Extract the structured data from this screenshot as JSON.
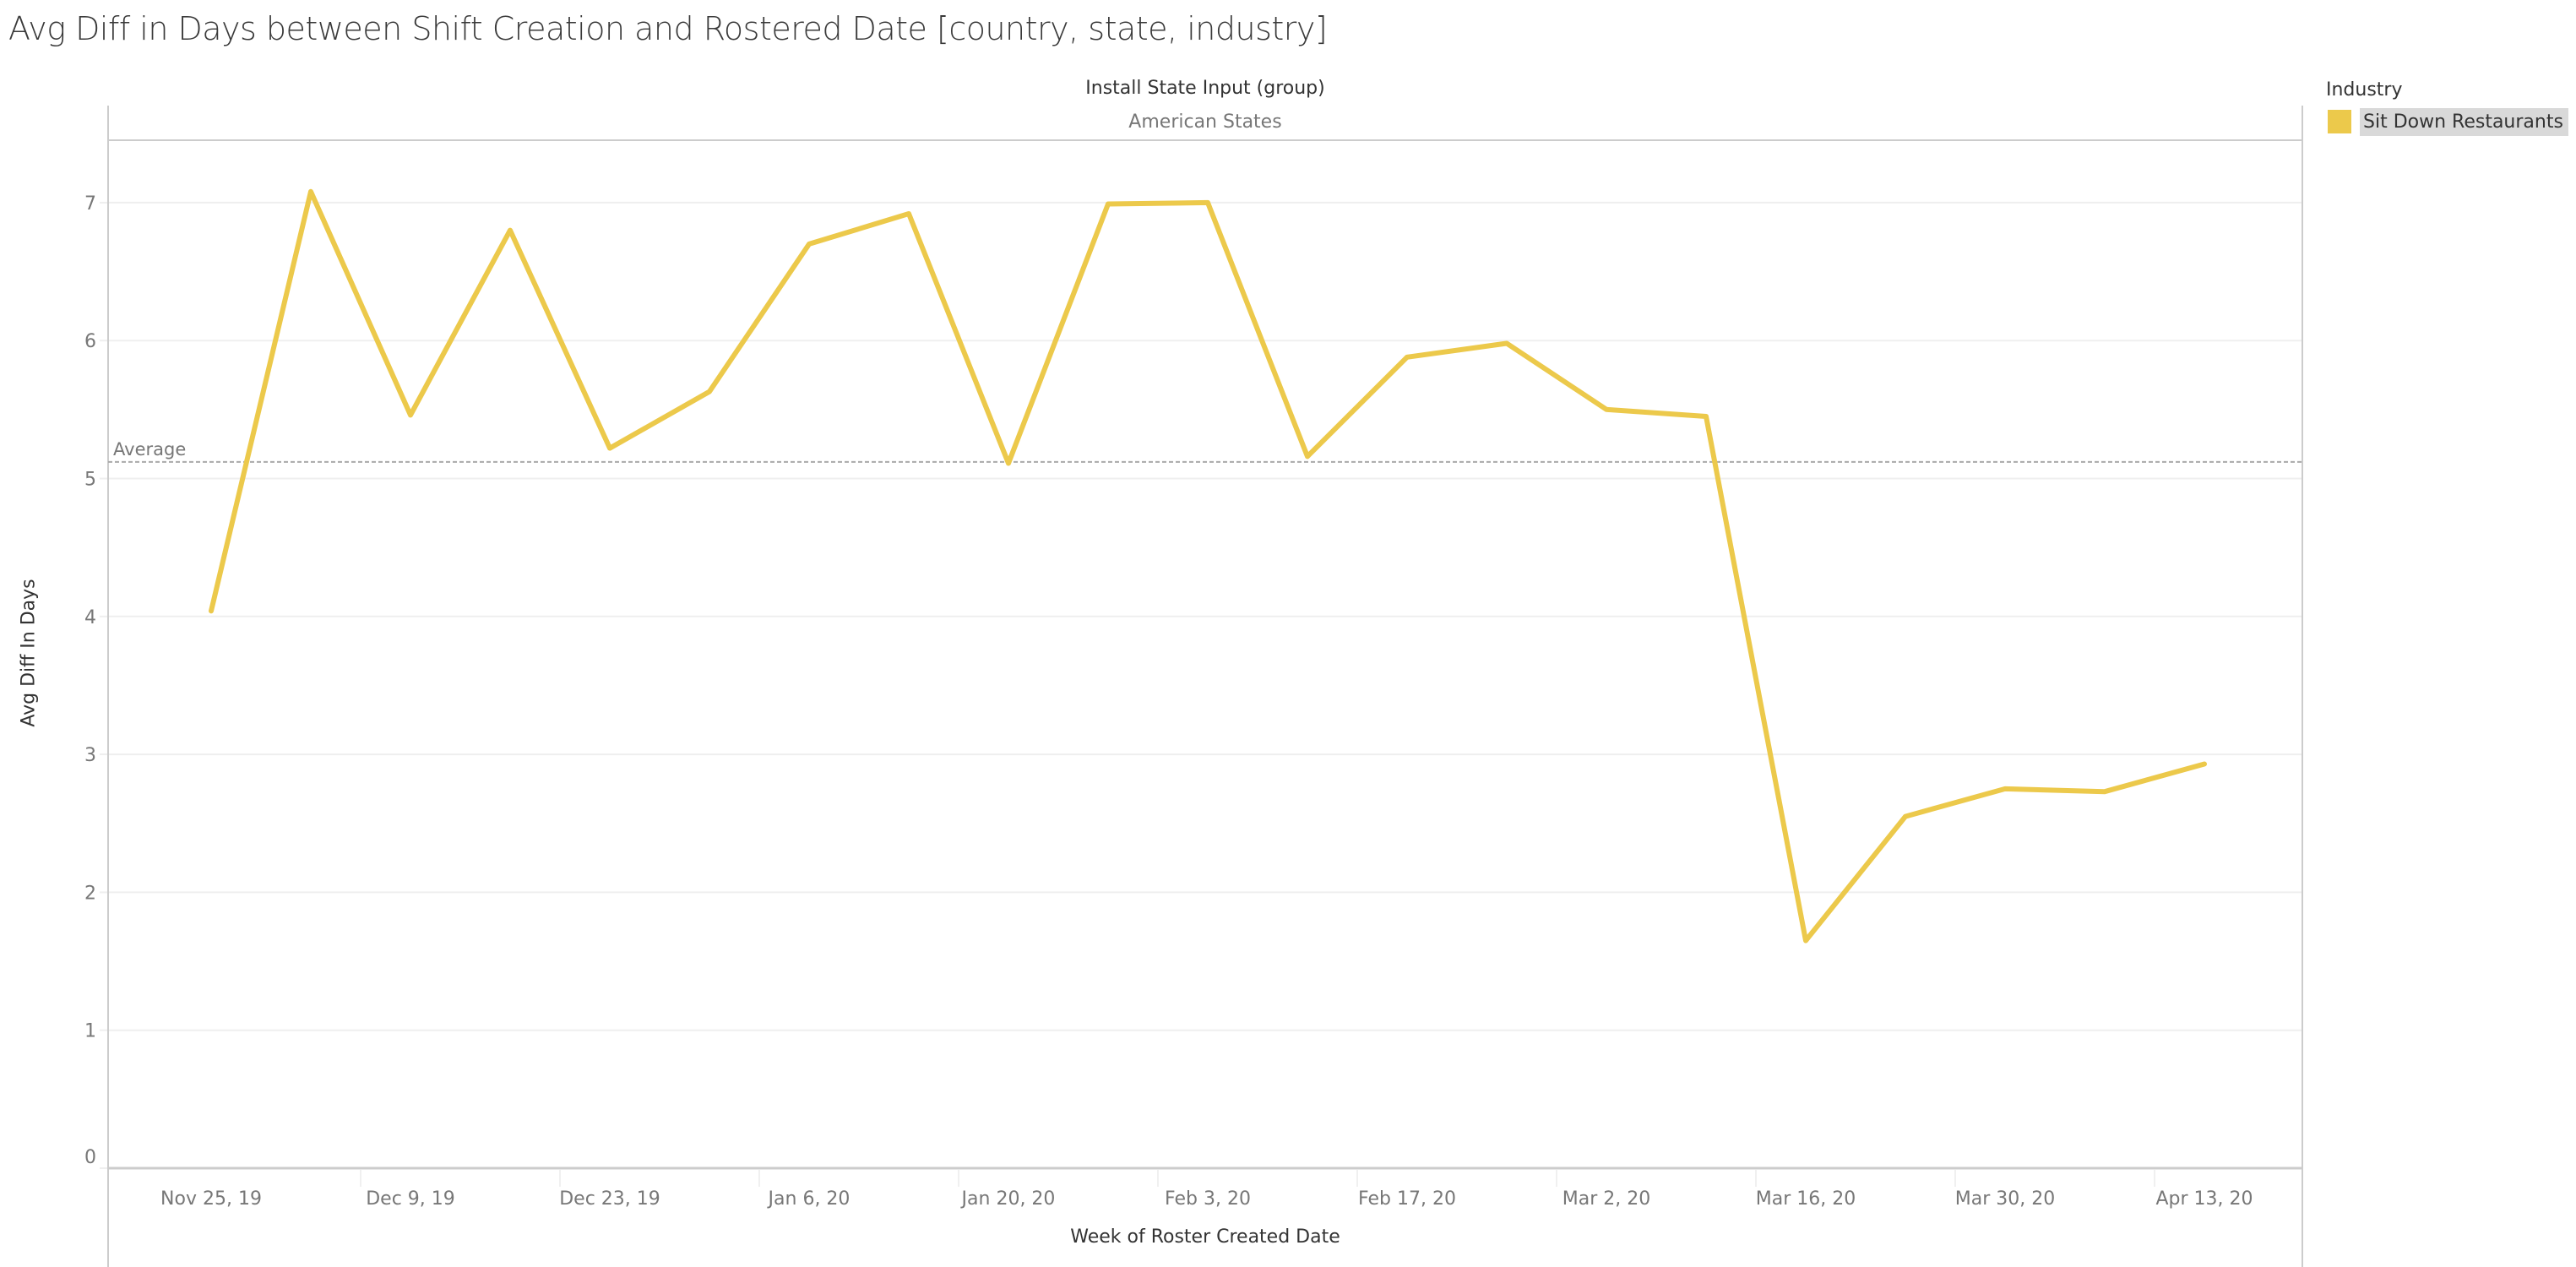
{
  "title": "Avg Diff in Days between Shift Creation and Rostered Date [country, state, industry]",
  "pane": {
    "header": "Install State Input (group)",
    "subheader": "American States"
  },
  "legend": {
    "title": "Industry",
    "items": [
      {
        "label": "Sit Down Restaurants",
        "color": "#ECC94B"
      }
    ]
  },
  "reference_line": {
    "label": "Average",
    "value": 5.12
  },
  "chart_data": {
    "type": "line",
    "title": "Avg Diff in Days between Shift Creation and Rostered Date [country, state, industry]",
    "xlabel": "Week of Roster Created Date",
    "ylabel": "Avg Diff In Days",
    "ylim": [
      0,
      7.5
    ],
    "yticks": [
      0,
      1,
      2,
      3,
      4,
      5,
      6,
      7
    ],
    "grid": true,
    "legend_position": "right",
    "column_header": "Install State Input (group)",
    "column_value": "American States",
    "x_tick_labels": [
      "Nov 25, 19",
      "Dec 9, 19",
      "Dec 23, 19",
      "Jan 6, 20",
      "Jan 20, 20",
      "Feb 3, 20",
      "Feb 17, 20",
      "Mar 2, 20",
      "Mar 16, 20",
      "Mar 30, 20",
      "Apr 13, 20"
    ],
    "x": [
      "Nov 25, 19",
      "Dec 2, 19",
      "Dec 9, 19",
      "Dec 16, 19",
      "Dec 23, 19",
      "Dec 30, 19",
      "Jan 6, 20",
      "Jan 13, 20",
      "Jan 20, 20",
      "Jan 27, 20",
      "Feb 3, 20",
      "Feb 10, 20",
      "Feb 17, 20",
      "Feb 24, 20",
      "Mar 2, 20",
      "Mar 9, 20",
      "Mar 16, 20",
      "Mar 23, 20",
      "Mar 30, 20",
      "Apr 6, 20",
      "Apr 13, 20"
    ],
    "series": [
      {
        "name": "Sit Down Restaurants",
        "color": "#ECC94B",
        "values": [
          4.04,
          7.08,
          5.46,
          6.8,
          5.22,
          5.63,
          6.7,
          6.92,
          5.11,
          6.99,
          7.0,
          5.16,
          5.88,
          5.98,
          5.5,
          5.45,
          1.65,
          2.55,
          2.75,
          2.73,
          2.93
        ]
      }
    ],
    "annotations": [
      {
        "type": "reference_line",
        "label": "Average",
        "value": 5.12,
        "style": "dashed"
      }
    ]
  }
}
